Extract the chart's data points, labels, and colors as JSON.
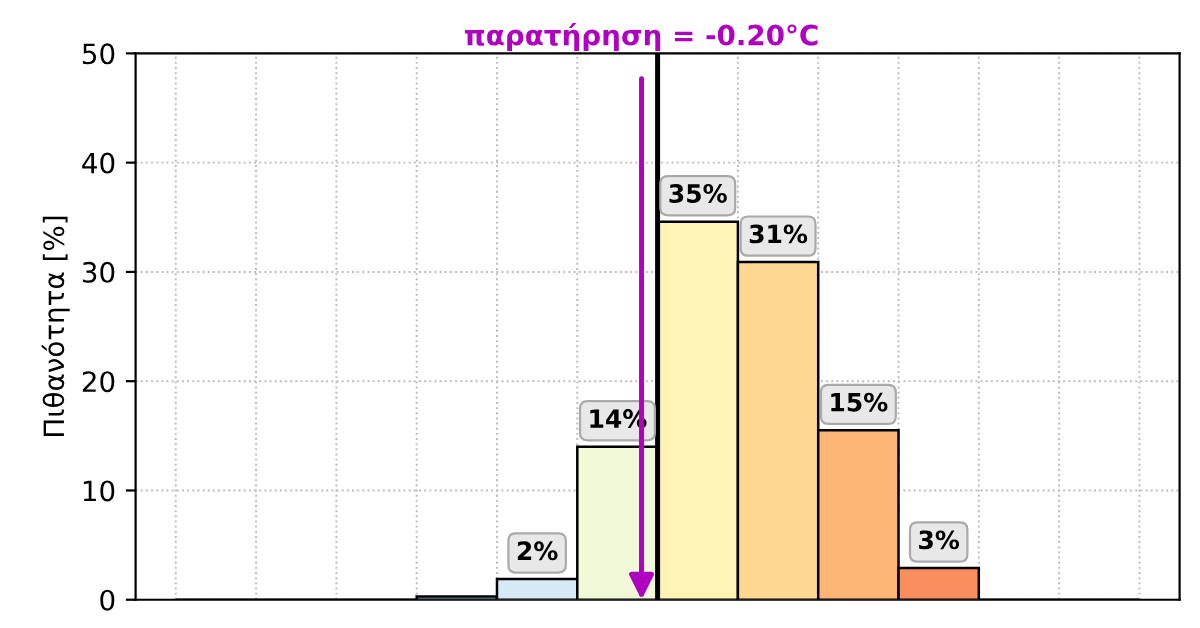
{
  "chart_data": {
    "type": "bar",
    "ylabel": "Πιθανότητα [%]",
    "categories": [
      null,
      null,
      null,
      null,
      null,
      null,
      null,
      null,
      null,
      null,
      null,
      null
    ],
    "values": [
      0,
      0,
      0,
      0.3,
      1.9,
      14,
      34.6,
      30.9,
      15.5,
      2.9,
      0,
      0
    ],
    "value_labels": [
      null,
      null,
      null,
      null,
      "2%",
      "14%",
      "35%",
      "31%",
      "15%",
      "3%",
      null,
      null
    ],
    "colors": [
      "#000000",
      "#000000",
      "#000000",
      "#91bfdb",
      "#d6eaf5",
      "#f1f9d9",
      "#fff3b6",
      "#fed893",
      "#fdb576",
      "#f88d5e",
      "#000000",
      "#000000"
    ],
    "ylim": [
      0,
      50
    ],
    "yticks": [
      0,
      10,
      20,
      30,
      40,
      50
    ],
    "grid": true,
    "annotations": [
      {
        "text": "παρατήρηση = -0.20°C",
        "y": 0
      }
    ]
  }
}
